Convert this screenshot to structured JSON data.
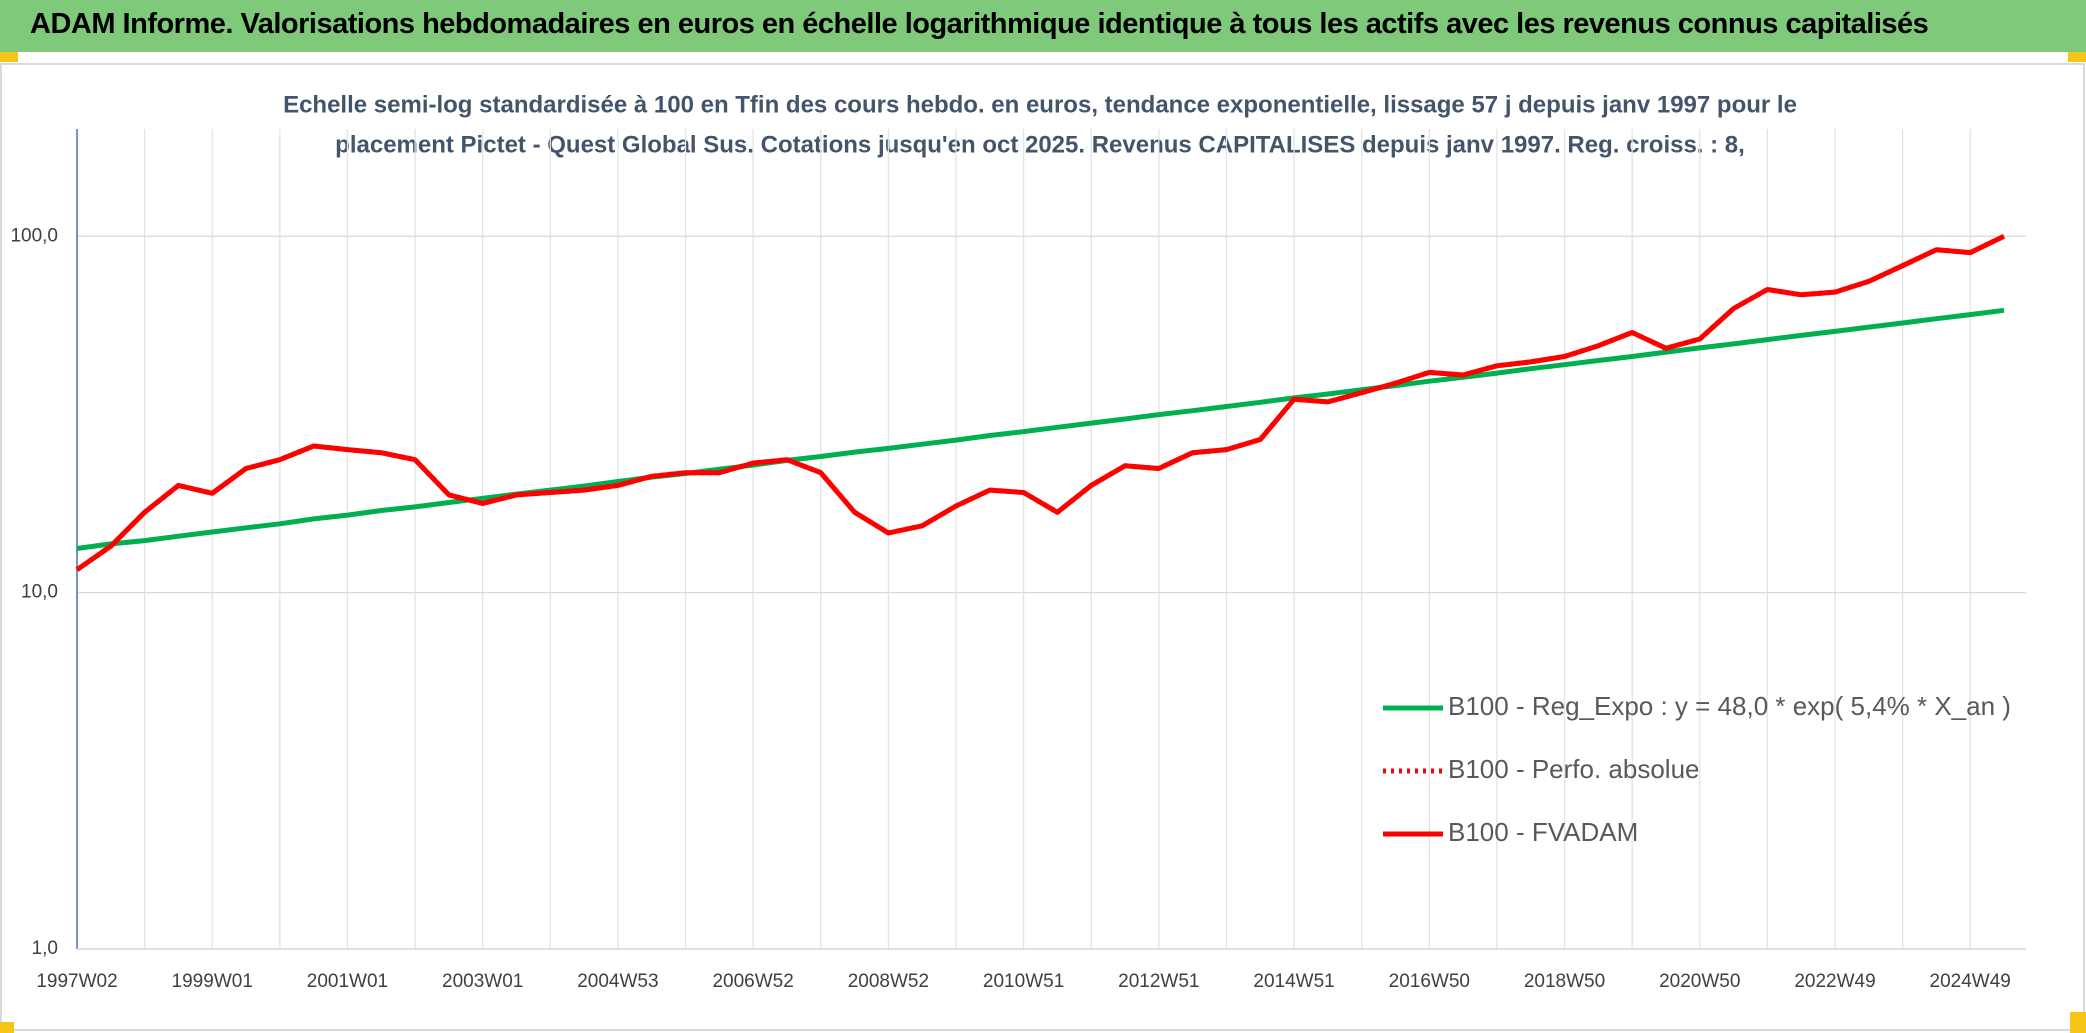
{
  "header": {
    "title": "ADAM Informe. Valorisations hebdomadaires en euros en échelle logarithmique identique à tous les actifs avec les revenus connus capitalisés"
  },
  "chart_data": {
    "type": "line",
    "title": [
      "Echelle semi-log standardisée à 100 en Tfin des cours hebdo. en euros, tendance exponentielle, lissage 57 j depuis janv 1997 pour le",
      "placement Pictet - Quest Global Sus. Cotations jusqu'en oct 2025. Revenus CAPITALISES depuis janv 1997. Reg. croiss. : 8,"
    ],
    "categories": [
      "1997W02",
      null,
      null,
      null,
      "1999W01",
      null,
      null,
      null,
      "2001W01",
      null,
      null,
      null,
      "2003W01",
      null,
      null,
      null,
      "2004W53",
      null,
      null,
      null,
      "2006W52",
      null,
      null,
      null,
      "2008W52",
      null,
      null,
      null,
      "2010W51",
      null,
      null,
      null,
      "2012W51",
      null,
      null,
      null,
      "2014W51",
      null,
      null,
      null,
      "2016W50",
      null,
      null,
      null,
      "2018W50",
      null,
      null,
      null,
      "2020W50",
      null,
      null,
      null,
      "2022W49",
      null,
      null,
      null,
      "2024W49",
      null
    ],
    "log_scale": true,
    "ylim": [
      1,
      200
    ],
    "yticks": [
      {
        "value": 1,
        "label": "1,0"
      },
      {
        "value": 10,
        "label": "10,0"
      },
      {
        "value": 100,
        "label": "100,0"
      }
    ],
    "grid": true,
    "legend": "right",
    "series": [
      {
        "name": "B100 - Reg_Expo : y = 48,0 * exp( 5,4% *  X_an )",
        "color": "#00b050",
        "line_style": "solid",
        "values": [
          13.3,
          13.7,
          14.0,
          14.4,
          14.8,
          15.2,
          15.6,
          16.1,
          16.5,
          17.0,
          17.4,
          17.9,
          18.4,
          18.9,
          19.4,
          19.9,
          20.5,
          21.1,
          21.6,
          22.2,
          22.8,
          23.5,
          24.1,
          24.8,
          25.4,
          26.1,
          26.8,
          27.6,
          28.3,
          29.1,
          29.9,
          30.7,
          31.6,
          32.4,
          33.3,
          34.2,
          35.2,
          36.1,
          37.1,
          38.1,
          39.2,
          40.2,
          41.3,
          42.5,
          43.6,
          44.8,
          46.0,
          47.3,
          48.6,
          49.9,
          51.3,
          52.7,
          54.1,
          55.6,
          57.1,
          58.7,
          60.3,
          62.0
        ]
      },
      {
        "name": "B100 - Perfo. absolue",
        "color": "#ff0000",
        "line_style": "dotted",
        "values": [
          11.6,
          13.5,
          16.8,
          20.0,
          19.0,
          22.3,
          23.6,
          25.8,
          25.2,
          24.7,
          23.6,
          18.8,
          17.8,
          18.8,
          19.1,
          19.4,
          20.0,
          21.2,
          21.7,
          21.7,
          23.1,
          23.6,
          21.7,
          16.8,
          14.7,
          15.4,
          17.5,
          19.4,
          19.1,
          16.8,
          20.0,
          22.7,
          22.3,
          24.7,
          25.2,
          26.9,
          34.9,
          34.3,
          36.4,
          38.7,
          41.5,
          40.8,
          43.3,
          44.4,
          46.0,
          49.3,
          53.7,
          48.5,
          51.5,
          62.7,
          70.9,
          68.5,
          69.7,
          74.7,
          82.7,
          91.7,
          90.0,
          100.0
        ]
      },
      {
        "name": "B100 - FVADAM",
        "color": "#ff0000",
        "line_style": "solid",
        "values": [
          11.6,
          13.5,
          16.8,
          20.0,
          19.0,
          22.3,
          23.6,
          25.8,
          25.2,
          24.7,
          23.6,
          18.8,
          17.8,
          18.8,
          19.1,
          19.4,
          20.0,
          21.2,
          21.7,
          21.7,
          23.1,
          23.6,
          21.7,
          16.8,
          14.7,
          15.4,
          17.5,
          19.4,
          19.1,
          16.8,
          20.0,
          22.7,
          22.3,
          24.7,
          25.2,
          26.9,
          34.9,
          34.3,
          36.4,
          38.7,
          41.5,
          40.8,
          43.3,
          44.4,
          46.0,
          49.3,
          53.7,
          48.5,
          51.5,
          62.7,
          70.9,
          68.5,
          69.7,
          74.7,
          82.7,
          91.7,
          90.0,
          100.0
        ]
      }
    ]
  }
}
